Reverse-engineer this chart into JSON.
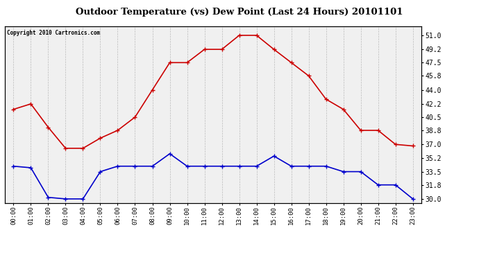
{
  "title": "Outdoor Temperature (vs) Dew Point (Last 24 Hours) 20101101",
  "copyright": "Copyright 2010 Cartronics.com",
  "hours": [
    "00:00",
    "01:00",
    "02:00",
    "03:00",
    "04:00",
    "05:00",
    "06:00",
    "07:00",
    "08:00",
    "09:00",
    "10:00",
    "11:00",
    "12:00",
    "13:00",
    "14:00",
    "15:00",
    "16:00",
    "17:00",
    "18:00",
    "19:00",
    "20:00",
    "21:00",
    "22:00",
    "23:00"
  ],
  "temp": [
    41.5,
    42.2,
    39.2,
    36.5,
    36.5,
    37.8,
    38.8,
    40.5,
    44.0,
    47.5,
    47.5,
    49.2,
    49.2,
    51.0,
    51.0,
    49.2,
    47.5,
    45.8,
    42.8,
    41.5,
    38.8,
    38.8,
    37.0,
    36.8
  ],
  "dew": [
    34.2,
    34.0,
    30.2,
    30.0,
    30.0,
    33.5,
    34.2,
    34.2,
    34.2,
    35.8,
    34.2,
    34.2,
    34.2,
    34.2,
    34.2,
    35.5,
    34.2,
    34.2,
    34.2,
    33.5,
    33.5,
    31.8,
    31.8,
    30.0
  ],
  "temp_color": "#cc0000",
  "dew_color": "#0000cc",
  "bg_color": "#ffffff",
  "plot_bg": "#f0f0f0",
  "grid_color": "#bbbbbb",
  "ylim": [
    29.5,
    52.2
  ],
  "yticks": [
    30.0,
    31.8,
    33.5,
    35.2,
    37.0,
    38.8,
    40.5,
    42.2,
    44.0,
    45.8,
    47.5,
    49.2,
    51.0
  ]
}
